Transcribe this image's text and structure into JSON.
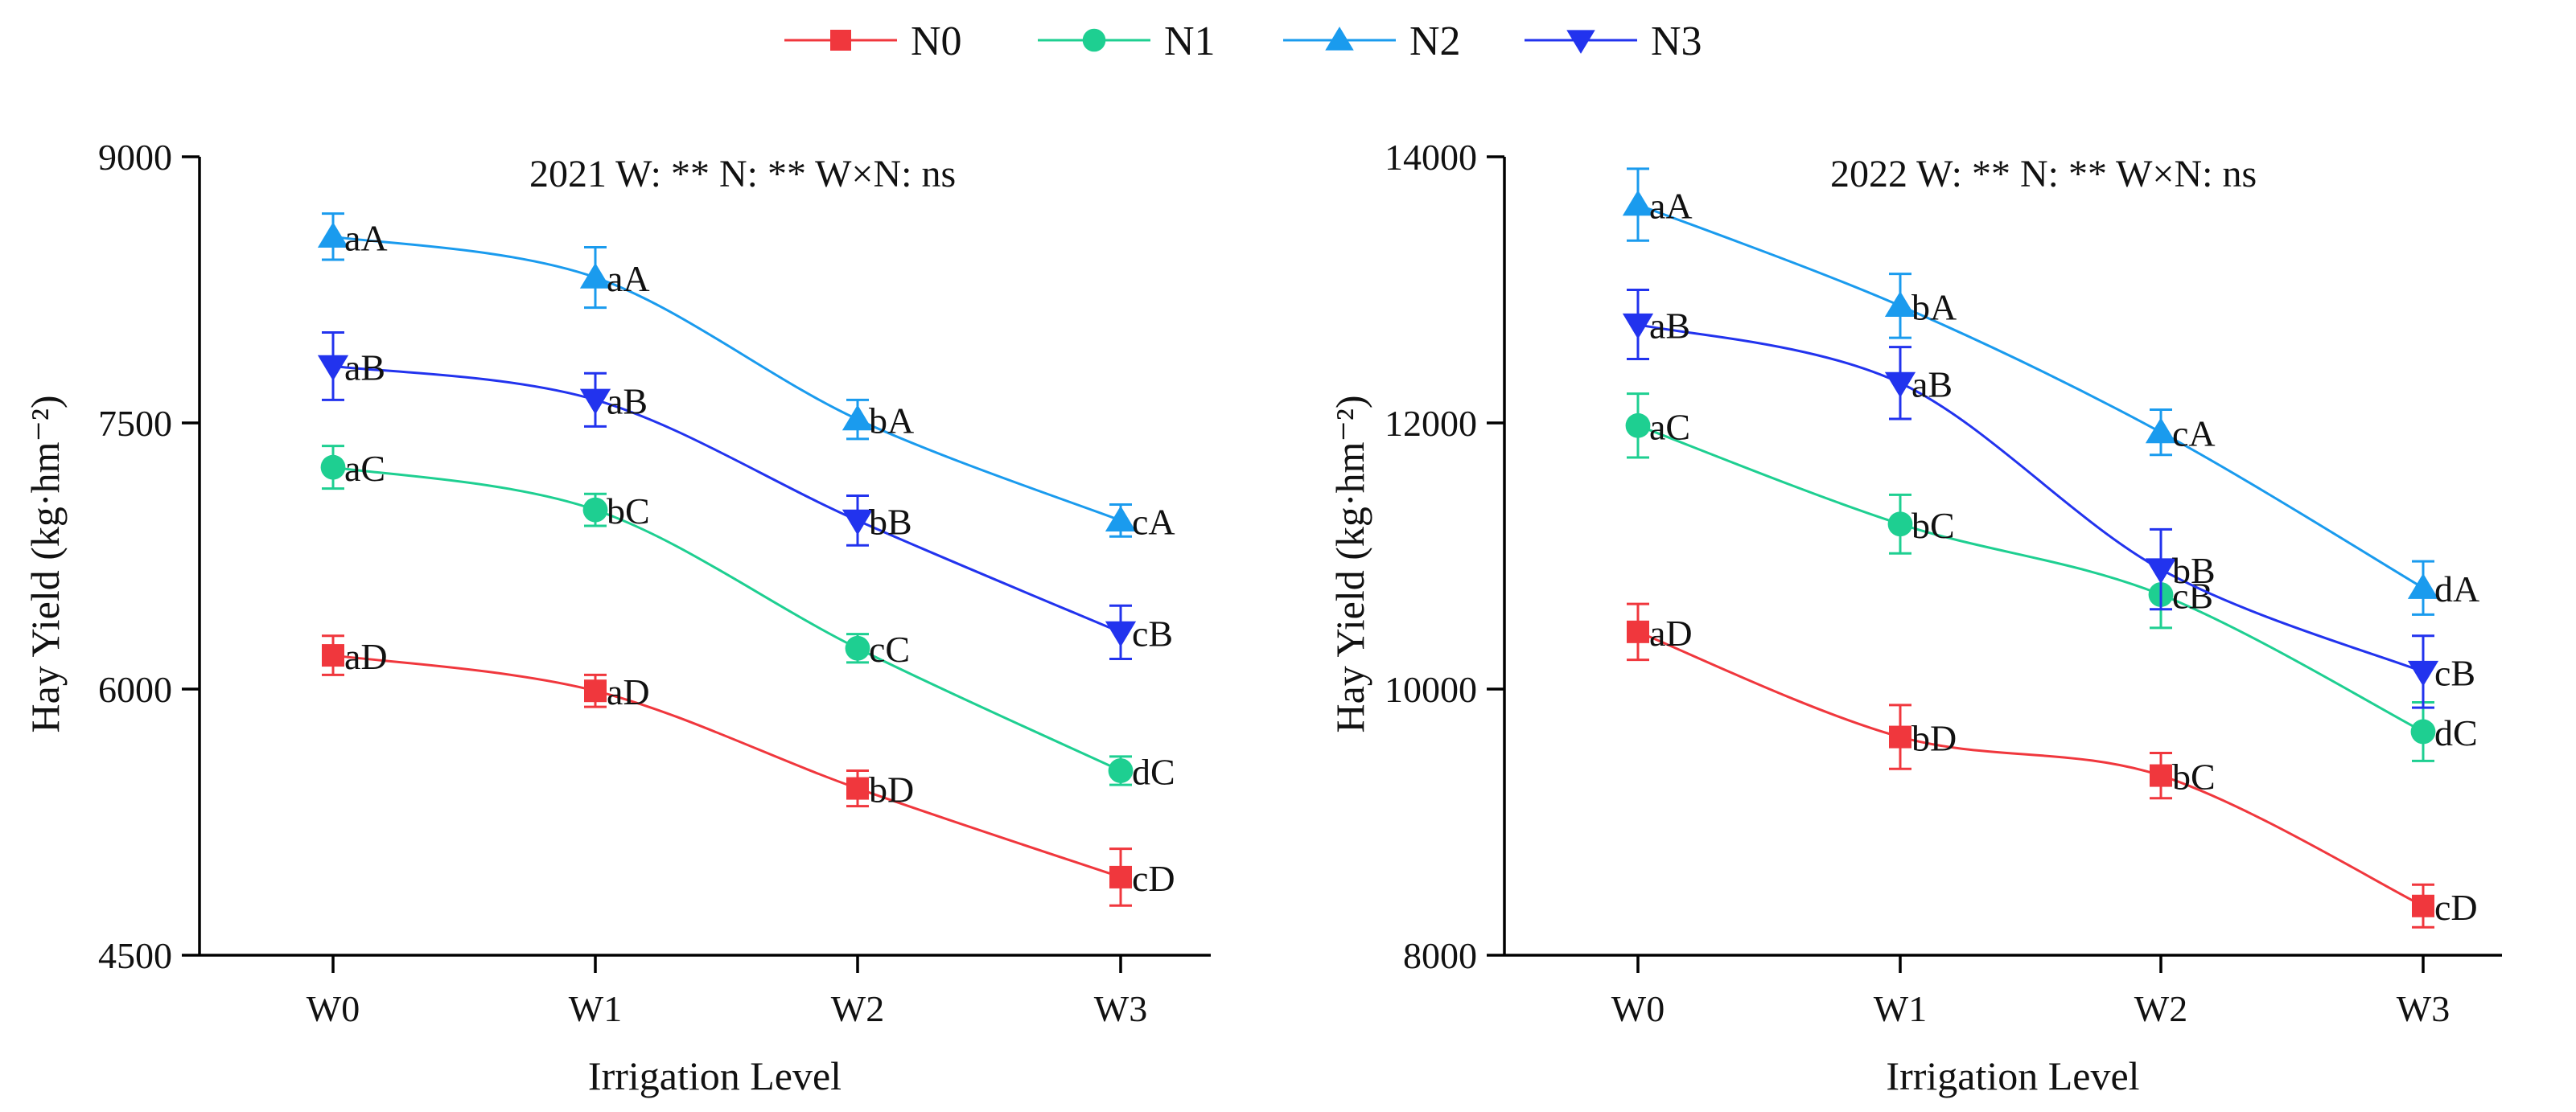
{
  "legend": [
    {
      "name": "N0",
      "color": "#f0373d",
      "marker": "square"
    },
    {
      "name": "N1",
      "color": "#1ecf91",
      "marker": "circle"
    },
    {
      "name": "N2",
      "color": "#1a9bee",
      "marker": "triangle-up"
    },
    {
      "name": "N3",
      "color": "#2233ee",
      "marker": "triangle-down"
    }
  ],
  "chart_data": [
    {
      "type": "line",
      "title": "",
      "annotation": "2021  W: **   N: **   W×N: ns",
      "xlabel": "Irrigation Level",
      "ylabel": "Hay Yield (kg·hm⁻²)",
      "categories": [
        "W0",
        "W1",
        "W2",
        "W3"
      ],
      "ylim": [
        4500,
        9000
      ],
      "yticks": [
        4500,
        6000,
        7500,
        9000
      ],
      "ytick_labels": [
        "4500",
        "6000",
        "7500",
        "9000"
      ],
      "series": [
        {
          "name": "N0",
          "values": [
            6190,
            5990,
            5440,
            4940
          ],
          "errors": [
            110,
            90,
            100,
            160
          ],
          "labels": [
            "aD",
            "aD",
            "bD",
            "cD"
          ]
        },
        {
          "name": "N1",
          "values": [
            7250,
            7010,
            6230,
            5540
          ],
          "errors": [
            120,
            90,
            80,
            80
          ],
          "labels": [
            "aC",
            "bC",
            "cC",
            "dC"
          ]
        },
        {
          "name": "N2",
          "values": [
            8550,
            8320,
            7520,
            6950
          ],
          "errors": [
            130,
            170,
            110,
            90
          ],
          "labels": [
            "aA",
            "aA",
            "bA",
            "cA"
          ]
        },
        {
          "name": "N3",
          "values": [
            7820,
            7630,
            6950,
            6320
          ],
          "errors": [
            190,
            150,
            140,
            150
          ],
          "labels": [
            "aB",
            "aB",
            "bB",
            "cB"
          ]
        }
      ]
    },
    {
      "type": "line",
      "title": "",
      "annotation": "2022  W: **   N: **   W×N: ns",
      "xlabel": "Irrigation Level",
      "ylabel": "Hay Yield (kg·hm⁻²)",
      "categories": [
        "W0",
        "W1",
        "W2",
        "W3"
      ],
      "ylim": [
        8000,
        14000
      ],
      "yticks": [
        8000,
        10000,
        12000,
        14000
      ],
      "ytick_labels": [
        "8000",
        "10000",
        "12000",
        "14000"
      ],
      "series": [
        {
          "name": "N0",
          "values": [
            10430,
            9640,
            9350,
            8370
          ],
          "errors": [
            210,
            240,
            170,
            160
          ],
          "labels": [
            "aD",
            "bD",
            "bC",
            "cD"
          ]
        },
        {
          "name": "N1",
          "values": [
            11980,
            11240,
            10710,
            9680
          ],
          "errors": [
            240,
            220,
            250,
            220
          ],
          "labels": [
            "aC",
            "bC",
            "cB",
            "dC"
          ]
        },
        {
          "name": "N2",
          "values": [
            13640,
            12880,
            11930,
            10760
          ],
          "errors": [
            270,
            240,
            170,
            200
          ],
          "labels": [
            "aA",
            "bA",
            "cA",
            "dA"
          ]
        },
        {
          "name": "N3",
          "values": [
            12740,
            12300,
            10900,
            10130
          ],
          "errors": [
            260,
            270,
            300,
            270
          ],
          "labels": [
            "aB",
            "aB",
            "bB",
            "cB"
          ]
        }
      ]
    }
  ]
}
